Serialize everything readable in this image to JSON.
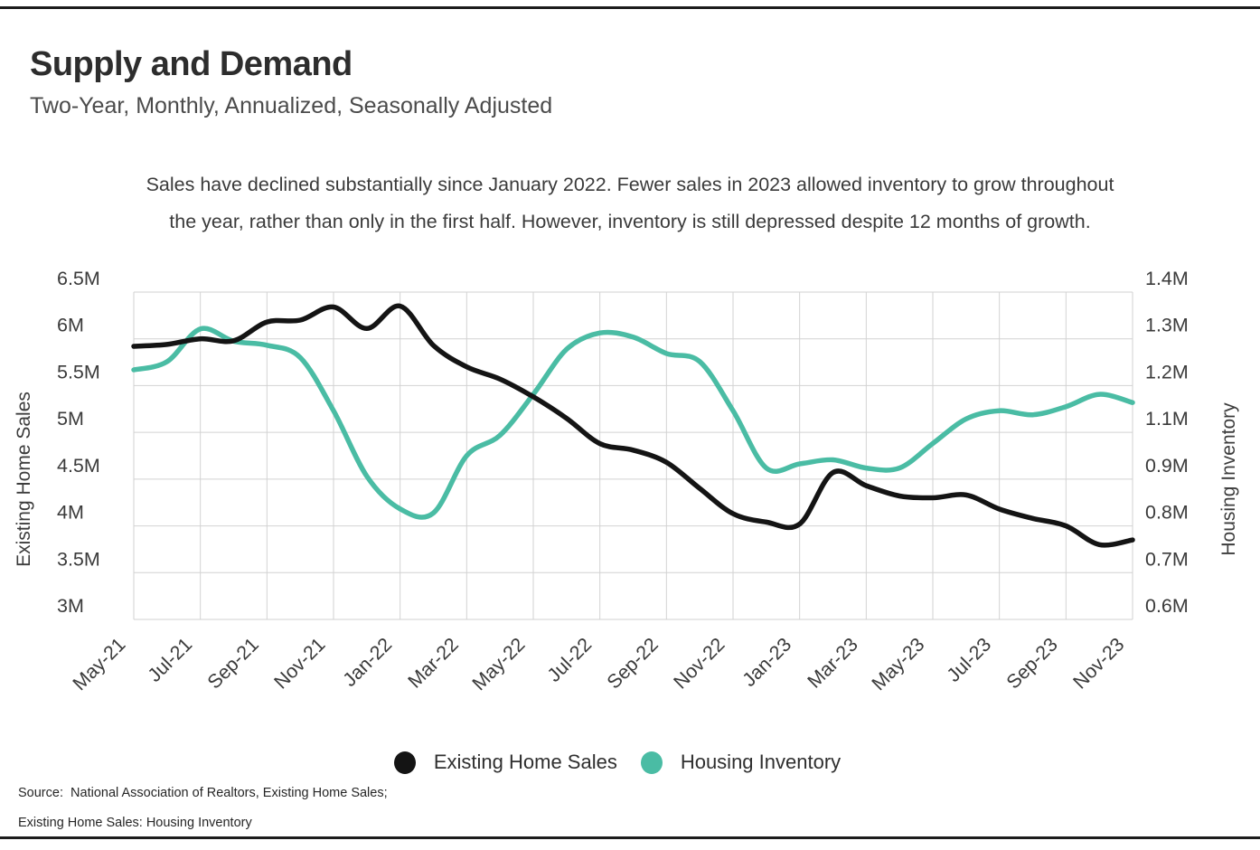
{
  "header": {
    "title": "Supply and Demand",
    "subtitle": "Two-Year, Monthly, Annualized, Seasonally Adjusted"
  },
  "annotation": "Sales have declined substantially since January 2022. Fewer sales in 2023 allowed inventory to grow throughout\nthe year, rather than only in the first half. However, inventory is still depressed despite 12 months of growth.",
  "legend": {
    "items": [
      {
        "label": "Existing Home Sales",
        "color": "#141414"
      },
      {
        "label": "Housing Inventory",
        "color": "#4abca4"
      }
    ]
  },
  "footer": {
    "source_line1": "Source:  National Association of Realtors, Existing Home Sales;",
    "source_line2": "Existing Home Sales: Housing Inventory"
  },
  "chart_data": {
    "type": "line",
    "title": "Supply and Demand",
    "x": [
      "May-21",
      "Jun-21",
      "Jul-21",
      "Aug-21",
      "Sep-21",
      "Oct-21",
      "Nov-21",
      "Dec-21",
      "Jan-22",
      "Feb-22",
      "Mar-22",
      "Apr-22",
      "May-22",
      "Jun-22",
      "Jul-22",
      "Aug-22",
      "Sep-22",
      "Oct-22",
      "Nov-22",
      "Dec-22",
      "Jan-23",
      "Feb-23",
      "Mar-23",
      "Apr-23",
      "May-23",
      "Jun-23",
      "Jul-23",
      "Aug-23",
      "Sep-23",
      "Oct-23",
      "Nov-23"
    ],
    "x_tick_labels": [
      "May-21",
      "Jul-21",
      "Sep-21",
      "Nov-21",
      "Jan-22",
      "Mar-22",
      "May-22",
      "Jul-22",
      "Sep-22",
      "Nov-22",
      "Jan-23",
      "Mar-23",
      "May-23",
      "Jul-23",
      "Sep-23",
      "Nov-23"
    ],
    "left_axis": {
      "title": "Existing Home Sales",
      "range": [
        3.0,
        6.5
      ],
      "tick_labels": [
        "6.5M",
        "6M",
        "5.5M",
        "5M",
        "4.5M",
        "4M",
        "3.5M",
        "3M"
      ]
    },
    "right_axis": {
      "title": "Housing Inventory",
      "range": [
        0.6,
        1.4
      ],
      "tick_labels": [
        "1.4M",
        "1.3M",
        "1.2M",
        "1.1M",
        "0.9M",
        "0.8M",
        "0.7M",
        "0.6M"
      ]
    },
    "grid": true,
    "legend_position": "bottom",
    "series": [
      {
        "name": "Housing Inventory",
        "axis": "right",
        "color": "#4abca4",
        "values": [
          1.21,
          1.23,
          1.31,
          1.28,
          1.27,
          1.24,
          1.11,
          0.95,
          0.87,
          0.86,
          1.0,
          1.05,
          1.15,
          1.26,
          1.3,
          1.29,
          1.25,
          1.23,
          1.11,
          0.97,
          0.98,
          0.99,
          0.97,
          0.97,
          1.03,
          1.09,
          1.11,
          1.1,
          1.12,
          1.15,
          1.13
        ]
      },
      {
        "name": "Existing Home Sales",
        "axis": "left",
        "color": "#141414",
        "values": [
          5.92,
          5.94,
          6.0,
          5.98,
          6.18,
          6.2,
          6.34,
          6.11,
          6.35,
          5.93,
          5.7,
          5.57,
          5.38,
          5.15,
          4.88,
          4.81,
          4.68,
          4.4,
          4.13,
          4.04,
          4.02,
          4.57,
          4.43,
          4.32,
          4.3,
          4.33,
          4.18,
          4.08,
          4.0,
          3.8,
          3.85
        ]
      }
    ]
  }
}
